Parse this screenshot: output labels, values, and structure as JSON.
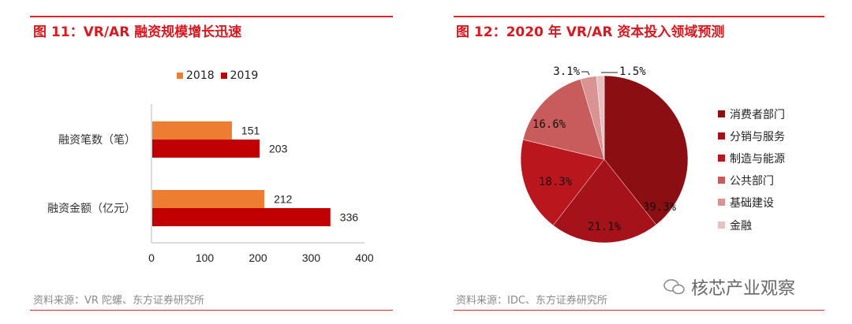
{
  "left": {
    "title": "图 11：VR/AR 融资规模增长迅速",
    "source": "资料来源：VR 陀螺、东方证券研究所"
  },
  "right": {
    "title": "图 12：2020 年 VR/AR 资本投入领域预测",
    "source": "资料来源：IDC、东方证券研究所"
  },
  "watermark": {
    "text": "核芯产业观察",
    "icon": "wechat-icon"
  },
  "chart_data": [
    {
      "type": "bar",
      "orientation": "horizontal",
      "categories": [
        "融资笔数（笔）",
        "融资金额（亿元）"
      ],
      "series": [
        {
          "name": "2018",
          "values": [
            151,
            212
          ],
          "color": "#ED7D31"
        },
        {
          "name": "2019",
          "values": [
            203,
            336
          ],
          "color": "#C00000"
        }
      ],
      "data_labels": [
        "151",
        "203",
        "212",
        "336"
      ],
      "xlim": [
        0,
        400
      ],
      "xticks": [
        "0",
        "100",
        "200",
        "300",
        "400"
      ],
      "legend": "top",
      "grid": false
    },
    {
      "type": "pie",
      "labels": [
        "消费者部门",
        "分销与服务",
        "制造与能源",
        "公共部门",
        "基础建设",
        "金融"
      ],
      "values": [
        39.3,
        21.1,
        18.3,
        16.6,
        3.1,
        1.5
      ],
      "value_labels": [
        "39.3%",
        "21.1%",
        "18.3%",
        "16.6%",
        "3.1%",
        "1.5%"
      ],
      "colors": [
        "#8B0E12",
        "#A5121A",
        "#BA161E",
        "#C85C5C",
        "#D99393",
        "#E8C0C0"
      ],
      "legend": "right"
    }
  ]
}
